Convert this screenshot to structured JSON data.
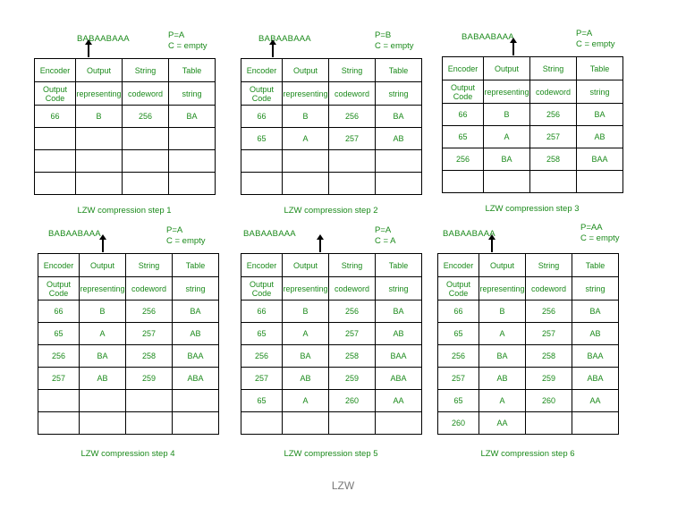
{
  "headers": {
    "row1": [
      "Encoder",
      "Output",
      "String",
      "Table"
    ],
    "row2": [
      "Output Code",
      "representing",
      "codeword",
      "string"
    ]
  },
  "panels": [
    {
      "input": "BABAABAAA",
      "p_line": "P=A",
      "c_line": "C = empty",
      "rows": [
        [
          "66",
          "B",
          "256",
          "BA"
        ],
        [
          "",
          "",
          "",
          ""
        ],
        [
          "",
          "",
          "",
          ""
        ],
        [
          "",
          "",
          "",
          ""
        ]
      ],
      "caption": "LZW compression step 1"
    },
    {
      "input": "BABAABAAA",
      "p_line": "P=B",
      "c_line": "C = empty",
      "rows": [
        [
          "66",
          "B",
          "256",
          "BA"
        ],
        [
          "65",
          "A",
          "257",
          "AB"
        ],
        [
          "",
          "",
          "",
          ""
        ],
        [
          "",
          "",
          "",
          ""
        ]
      ],
      "caption": "LZW compression step 2"
    },
    {
      "input": "BABAABAAA",
      "p_line": "P=A",
      "c_line": "C = empty",
      "rows": [
        [
          "66",
          "B",
          "256",
          "BA"
        ],
        [
          "65",
          "A",
          "257",
          "AB"
        ],
        [
          "256",
          "BA",
          "258",
          "BAA"
        ],
        [
          "",
          "",
          "",
          ""
        ]
      ],
      "caption": "LZW compression step 3"
    },
    {
      "input": "BABAABAAA",
      "p_line": "P=A",
      "c_line": "C = empty",
      "rows": [
        [
          "66",
          "B",
          "256",
          "BA"
        ],
        [
          "65",
          "A",
          "257",
          "AB"
        ],
        [
          "256",
          "BA",
          "258",
          "BAA"
        ],
        [
          "257",
          "AB",
          "259",
          "ABA"
        ],
        [
          "",
          "",
          "",
          ""
        ],
        [
          "",
          "",
          "",
          ""
        ]
      ],
      "caption": "LZW compression step 4"
    },
    {
      "input": "BABAABAAA",
      "p_line": "P=A",
      "c_line": "C = A",
      "rows": [
        [
          "66",
          "B",
          "256",
          "BA"
        ],
        [
          "65",
          "A",
          "257",
          "AB"
        ],
        [
          "256",
          "BA",
          "258",
          "BAA"
        ],
        [
          "257",
          "AB",
          "259",
          "ABA"
        ],
        [
          "65",
          "A",
          "260",
          "AA"
        ],
        [
          "",
          "",
          "",
          ""
        ]
      ],
      "caption": "LZW compression step 5"
    },
    {
      "input": "BABAABAAA",
      "p_line": "P=AA",
      "c_line": "C = empty",
      "rows": [
        [
          "66",
          "B",
          "256",
          "BA"
        ],
        [
          "65",
          "A",
          "257",
          "AB"
        ],
        [
          "256",
          "BA",
          "258",
          "BAA"
        ],
        [
          "257",
          "AB",
          "259",
          "ABA"
        ],
        [
          "65",
          "A",
          "260",
          "AA"
        ],
        [
          "260",
          "AA",
          "",
          ""
        ]
      ],
      "caption": "LZW compression step 6"
    }
  ],
  "footer": "LZW"
}
